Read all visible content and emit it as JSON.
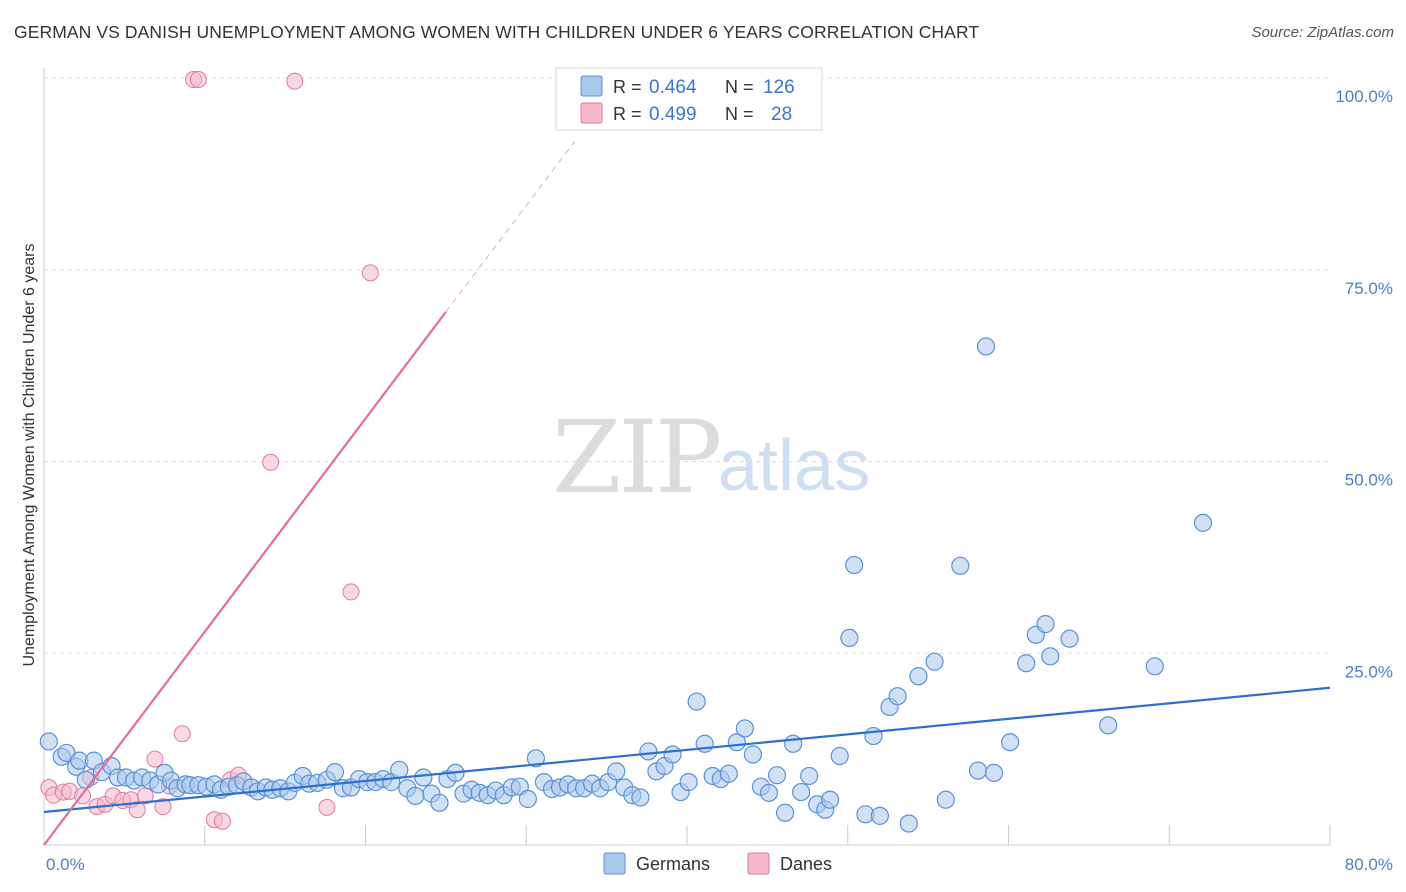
{
  "title": "GERMAN VS DANISH UNEMPLOYMENT AMONG WOMEN WITH CHILDREN UNDER 6 YEARS CORRELATION CHART",
  "source": "Source: ZipAtlas.com",
  "watermark": {
    "part1": "ZIP",
    "part2": "atlas"
  },
  "colors": {
    "german_fill": "#a9c8ee",
    "german_stroke": "#5b91d6",
    "german_line": "#2f6fcf",
    "dane_fill": "#f5b8cc",
    "dane_stroke": "#e0799c",
    "dane_line": "#e06e98"
  },
  "legend": {
    "rows": [
      {
        "r_label": "R =",
        "r_value": "0.464",
        "n_label": "N =",
        "n_value": "126"
      },
      {
        "r_label": "R =",
        "r_value": "0.499",
        "n_label": "N =",
        "n_value": "28"
      }
    ]
  },
  "bottom_legend": {
    "germans": "Germans",
    "danes": "Danes"
  },
  "chart_data": {
    "type": "scatter",
    "title": "GERMAN VS DANISH UNEMPLOYMENT AMONG WOMEN WITH CHILDREN UNDER 6 YEARS CORRELATION CHART",
    "xlabel": "",
    "ylabel": "Unemployment Among Women with Children Under 6 years",
    "xlim": [
      0,
      80
    ],
    "ylim": [
      0,
      100
    ],
    "x_tick_labels": [
      "0.0%",
      "80.0%"
    ],
    "y_ticks": [
      25,
      50,
      75,
      100
    ],
    "y_tick_labels": [
      "25.0%",
      "50.0%",
      "75.0%",
      "100.0%"
    ],
    "grid": true,
    "series": [
      {
        "name": "Germans",
        "R": 0.464,
        "N": 126,
        "trend": {
          "x": [
            0,
            80
          ],
          "y": [
            4.3,
            20.5
          ]
        },
        "points": [
          [
            0.3,
            13.5
          ],
          [
            1.1,
            11.5
          ],
          [
            1.4,
            12.0
          ],
          [
            2.0,
            10.2
          ],
          [
            2.2,
            11.0
          ],
          [
            2.6,
            8.5
          ],
          [
            3.1,
            11.0
          ],
          [
            3.6,
            9.5
          ],
          [
            4.2,
            10.3
          ],
          [
            4.6,
            8.8
          ],
          [
            5.1,
            8.8
          ],
          [
            5.6,
            8.4
          ],
          [
            6.1,
            8.8
          ],
          [
            6.6,
            8.4
          ],
          [
            7.1,
            7.9
          ],
          [
            7.5,
            9.4
          ],
          [
            7.9,
            8.4
          ],
          [
            8.3,
            7.4
          ],
          [
            8.8,
            7.9
          ],
          [
            9.1,
            7.8
          ],
          [
            9.6,
            7.8
          ],
          [
            10.1,
            7.6
          ],
          [
            10.6,
            7.9
          ],
          [
            11.0,
            7.2
          ],
          [
            11.5,
            7.6
          ],
          [
            12.0,
            7.8
          ],
          [
            12.4,
            8.3
          ],
          [
            12.9,
            7.5
          ],
          [
            13.3,
            7.0
          ],
          [
            13.8,
            7.5
          ],
          [
            14.2,
            7.2
          ],
          [
            14.7,
            7.4
          ],
          [
            15.2,
            7.0
          ],
          [
            15.6,
            8.1
          ],
          [
            16.1,
            9.0
          ],
          [
            16.5,
            8.0
          ],
          [
            17.0,
            8.1
          ],
          [
            17.6,
            8.5
          ],
          [
            18.1,
            9.5
          ],
          [
            18.6,
            7.4
          ],
          [
            19.1,
            7.5
          ],
          [
            19.6,
            8.6
          ],
          [
            20.1,
            8.2
          ],
          [
            20.6,
            8.2
          ],
          [
            21.1,
            8.6
          ],
          [
            21.6,
            8.2
          ],
          [
            22.1,
            9.8
          ],
          [
            22.6,
            7.4
          ],
          [
            23.1,
            6.4
          ],
          [
            23.6,
            8.8
          ],
          [
            24.1,
            6.7
          ],
          [
            24.6,
            5.5
          ],
          [
            25.1,
            8.6
          ],
          [
            25.6,
            9.4
          ],
          [
            26.1,
            6.7
          ],
          [
            26.6,
            7.2
          ],
          [
            27.1,
            6.8
          ],
          [
            27.6,
            6.5
          ],
          [
            28.1,
            7.1
          ],
          [
            28.6,
            6.5
          ],
          [
            29.1,
            7.5
          ],
          [
            29.6,
            7.6
          ],
          [
            30.1,
            6.0
          ],
          [
            30.6,
            11.3
          ],
          [
            31.1,
            8.2
          ],
          [
            31.6,
            7.3
          ],
          [
            32.1,
            7.5
          ],
          [
            32.6,
            7.9
          ],
          [
            33.1,
            7.4
          ],
          [
            33.6,
            7.4
          ],
          [
            34.1,
            8.0
          ],
          [
            34.6,
            7.4
          ],
          [
            35.1,
            8.2
          ],
          [
            35.6,
            9.6
          ],
          [
            36.1,
            7.5
          ],
          [
            36.6,
            6.5
          ],
          [
            37.1,
            6.2
          ],
          [
            37.6,
            12.2
          ],
          [
            38.1,
            9.6
          ],
          [
            38.6,
            10.3
          ],
          [
            39.1,
            11.8
          ],
          [
            39.6,
            6.9
          ],
          [
            40.1,
            8.2
          ],
          [
            40.6,
            18.7
          ],
          [
            41.1,
            13.2
          ],
          [
            41.6,
            9.0
          ],
          [
            42.1,
            8.6
          ],
          [
            42.6,
            9.3
          ],
          [
            43.1,
            13.4
          ],
          [
            43.6,
            15.2
          ],
          [
            44.1,
            11.8
          ],
          [
            44.6,
            7.6
          ],
          [
            45.1,
            6.8
          ],
          [
            45.6,
            9.1
          ],
          [
            46.1,
            4.2
          ],
          [
            46.6,
            13.2
          ],
          [
            47.1,
            6.9
          ],
          [
            47.6,
            9.0
          ],
          [
            48.1,
            5.3
          ],
          [
            48.6,
            4.6
          ],
          [
            48.9,
            5.9
          ],
          [
            49.5,
            11.6
          ],
          [
            50.1,
            27.0
          ],
          [
            50.4,
            36.5
          ],
          [
            51.1,
            4.0
          ],
          [
            51.6,
            14.2
          ],
          [
            52.0,
            3.8
          ],
          [
            52.6,
            18.0
          ],
          [
            53.1,
            19.4
          ],
          [
            53.8,
            2.8
          ],
          [
            54.4,
            22.0
          ],
          [
            55.4,
            23.9
          ],
          [
            56.1,
            5.9
          ],
          [
            57.0,
            36.4
          ],
          [
            58.1,
            9.7
          ],
          [
            58.6,
            65.0
          ],
          [
            59.1,
            9.4
          ],
          [
            60.1,
            13.4
          ],
          [
            61.1,
            23.7
          ],
          [
            61.7,
            27.4
          ],
          [
            62.3,
            28.8
          ],
          [
            62.6,
            24.6
          ],
          [
            63.8,
            26.9
          ],
          [
            66.2,
            15.6
          ],
          [
            69.1,
            23.3
          ],
          [
            72.1,
            42.0
          ]
        ]
      },
      {
        "name": "Danes",
        "R": 0.499,
        "N": 28,
        "trend": {
          "x": [
            0,
            25
          ],
          "y": [
            0,
            69.5
          ],
          "dashed_x": [
            25,
            33
          ],
          "dashed_y": [
            69.5,
            91.7
          ]
        },
        "points": [
          [
            0.3,
            7.5
          ],
          [
            0.6,
            6.5
          ],
          [
            1.2,
            6.9
          ],
          [
            1.6,
            7.0
          ],
          [
            2.4,
            6.4
          ],
          [
            2.9,
            8.8
          ],
          [
            3.3,
            5.0
          ],
          [
            3.8,
            5.3
          ],
          [
            4.3,
            6.4
          ],
          [
            4.9,
            5.8
          ],
          [
            5.4,
            5.9
          ],
          [
            5.8,
            4.6
          ],
          [
            6.3,
            6.4
          ],
          [
            6.9,
            11.2
          ],
          [
            7.4,
            5.0
          ],
          [
            7.8,
            7.7
          ],
          [
            8.6,
            14.5
          ],
          [
            9.3,
            99.8
          ],
          [
            9.6,
            99.8
          ],
          [
            10.6,
            3.3
          ],
          [
            11.1,
            3.1
          ],
          [
            11.6,
            8.5
          ],
          [
            12.1,
            9.1
          ],
          [
            14.1,
            49.9
          ],
          [
            15.6,
            99.6
          ],
          [
            17.6,
            4.9
          ],
          [
            19.1,
            33.0
          ],
          [
            20.3,
            74.6
          ]
        ]
      }
    ]
  }
}
